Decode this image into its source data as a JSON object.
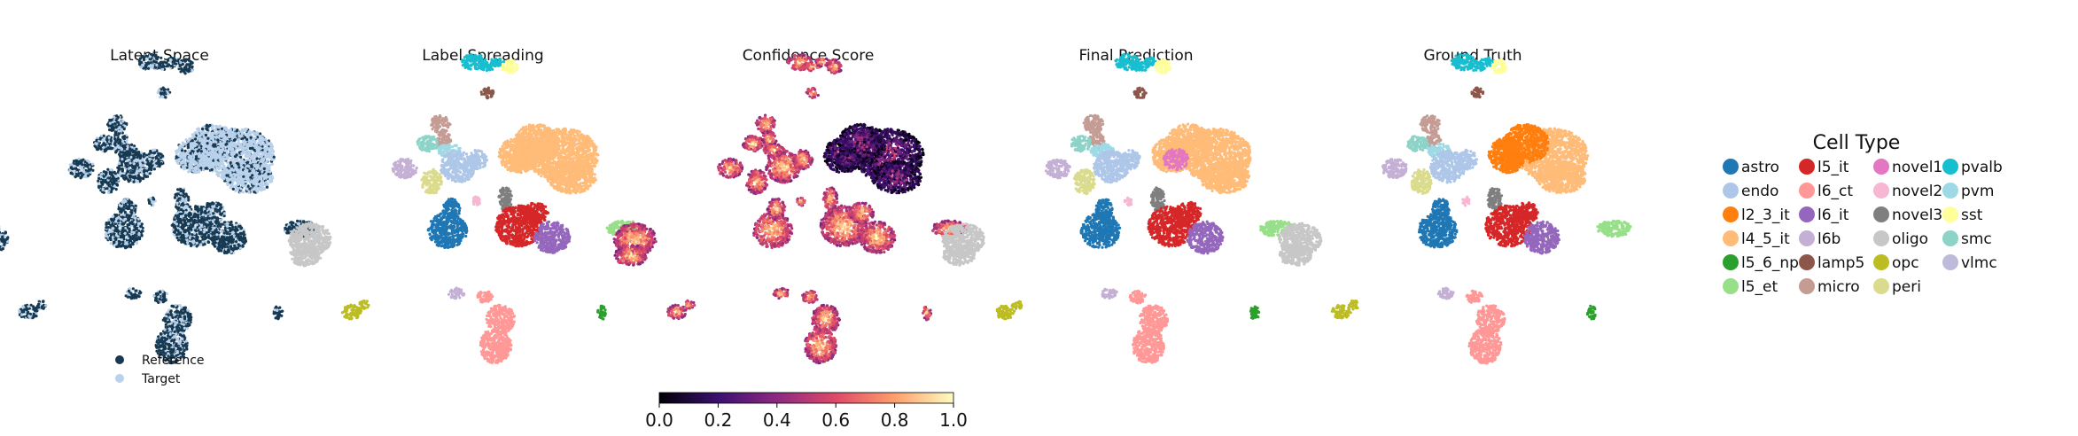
{
  "chart_data": {
    "type": "scatter",
    "panels": [
      {
        "title": "Latent Space",
        "color_mode": "batch"
      },
      {
        "title": "Label Spreading",
        "color_mode": "cell_type"
      },
      {
        "title": "Confidence Score",
        "color_mode": "confidence"
      },
      {
        "title": "Final Prediction",
        "color_mode": "cell_type"
      },
      {
        "title": "Ground Truth",
        "color_mode": "cell_type"
      }
    ],
    "batch_legend": [
      {
        "label": "Reference",
        "color": "#173a52"
      },
      {
        "label": "Target",
        "color": "#b9d1ea"
      }
    ],
    "colorbar": {
      "colormap": "magma",
      "ticks": [
        "0.0",
        "0.2",
        "0.4",
        "0.6",
        "0.8",
        "1.0"
      ],
      "range": [
        0,
        1
      ]
    },
    "legend": {
      "title": "Cell Type",
      "entries": [
        {
          "label": "astro",
          "color": "#1f77b4"
        },
        {
          "label": "endo",
          "color": "#aec7e8"
        },
        {
          "label": "l2_3_it",
          "color": "#ff7f0e"
        },
        {
          "label": "l4_5_it",
          "color": "#ffbb78"
        },
        {
          "label": "l5_6_np",
          "color": "#2ca02c"
        },
        {
          "label": "l5_et",
          "color": "#98df8a"
        },
        {
          "label": "l5_it",
          "color": "#d62728"
        },
        {
          "label": "l6_ct",
          "color": "#ff9896"
        },
        {
          "label": "l6_it",
          "color": "#9467bd"
        },
        {
          "label": "l6b",
          "color": "#c5b0d5"
        },
        {
          "label": "lamp5",
          "color": "#8c564b"
        },
        {
          "label": "micro",
          "color": "#c49c94"
        },
        {
          "label": "novel1",
          "color": "#e377c2"
        },
        {
          "label": "novel2",
          "color": "#f7b6d2"
        },
        {
          "label": "novel3",
          "color": "#7f7f7f"
        },
        {
          "label": "oligo",
          "color": "#c7c7c7"
        },
        {
          "label": "opc",
          "color": "#bcbd22"
        },
        {
          "label": "peri",
          "color": "#dbdb8d"
        },
        {
          "label": "pvalb",
          "color": "#17becf"
        },
        {
          "label": "pvm",
          "color": "#9edae5"
        },
        {
          "label": "sst",
          "color": "#ffff99"
        },
        {
          "label": "smc",
          "color": "#8dd3c7"
        },
        {
          "label": "vlmc",
          "color": "#bebada"
        }
      ]
    },
    "axes": "off",
    "grid": false
  }
}
